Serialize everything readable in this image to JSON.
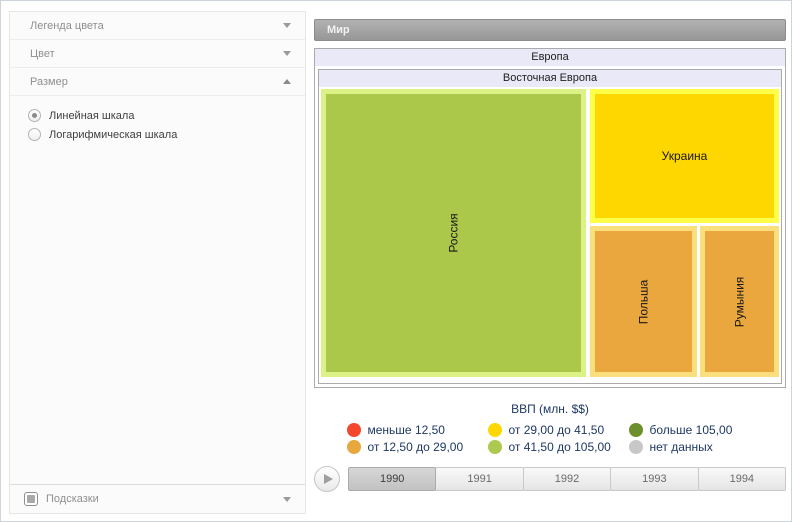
{
  "sidebar": {
    "sections": [
      {
        "label": "Легенда цвета",
        "state": "collapsed"
      },
      {
        "label": "Цвет",
        "state": "collapsed"
      },
      {
        "label": "Размер",
        "state": "expanded"
      }
    ],
    "size_scale_options": [
      {
        "label": "Линейная шкала",
        "selected": true
      },
      {
        "label": "Логарифмическая шкала",
        "selected": false
      }
    ],
    "tooltips": {
      "label": "Подсказки",
      "state": "collapsed",
      "checked": true
    }
  },
  "treemap": {
    "root_label": "Мир",
    "group_label": "Европа",
    "subgroup_label": "Восточная Европа",
    "cells": [
      {
        "label": "Россия",
        "fill": "#ABC84B",
        "border": "#DCF287",
        "orientation": "vertical"
      },
      {
        "label": "Украина",
        "fill": "#FFD700",
        "border": "#FFFF4A",
        "orientation": "horizontal"
      },
      {
        "label": "Польша",
        "fill": "#E9A73E",
        "border": "#FCDF7D",
        "orientation": "vertical"
      },
      {
        "label": "Румыния",
        "fill": "#E9A73E",
        "border": "#FCDF7D",
        "orientation": "vertical"
      }
    ]
  },
  "legend": {
    "title": "ВВП (млн. $$)",
    "text_color": "#1F3864",
    "items": [
      {
        "label": "меньше 12,50",
        "color": "#F4472E"
      },
      {
        "label": "от 29,00 до 41,50",
        "color": "#FFD703"
      },
      {
        "label": "больше 105,00",
        "color": "#6E8F2D"
      },
      {
        "label": "от 12,50 до 29,00",
        "color": "#E7A83D"
      },
      {
        "label": "от 41,50 до 105,00",
        "color": "#AEC94F"
      },
      {
        "label": "нет данных",
        "color": "#C8C8C8"
      }
    ]
  },
  "timeline": {
    "years": [
      {
        "label": "1990",
        "selected": true
      },
      {
        "label": "1991",
        "selected": false
      },
      {
        "label": "1992",
        "selected": false
      },
      {
        "label": "1993",
        "selected": false
      },
      {
        "label": "1994",
        "selected": false
      }
    ]
  },
  "chart_data": {
    "type": "treemap",
    "title": "ВВП (млн. $$)",
    "hierarchy": [
      "Мир",
      "Европа",
      "Восточная Европа"
    ],
    "year_shown": "1990",
    "years": [
      "1990",
      "1991",
      "1992",
      "1993",
      "1994"
    ],
    "nodes": [
      {
        "name": "Россия",
        "area_fraction": 0.59,
        "color_bin": "от 41,50 до 105,00"
      },
      {
        "name": "Украина",
        "area_fraction": 0.2,
        "color_bin": "от 29,00 до 41,50"
      },
      {
        "name": "Польша",
        "area_fraction": 0.12,
        "color_bin": "от 12,50 до 29,00"
      },
      {
        "name": "Румыния",
        "area_fraction": 0.09,
        "color_bin": "от 12,50 до 29,00"
      }
    ],
    "color_bins": [
      {
        "label": "меньше 12,50",
        "color": "#F4472E"
      },
      {
        "label": "от 12,50 до 29,00",
        "color": "#E7A83D"
      },
      {
        "label": "от 29,00 до 41,50",
        "color": "#FFD703"
      },
      {
        "label": "от 41,50 до 105,00",
        "color": "#AEC94F"
      },
      {
        "label": "больше 105,00",
        "color": "#6E8F2D"
      },
      {
        "label": "нет данных",
        "color": "#C8C8C8"
      }
    ],
    "size_scale": "Линейная шкала",
    "legend_position": "bottom"
  }
}
